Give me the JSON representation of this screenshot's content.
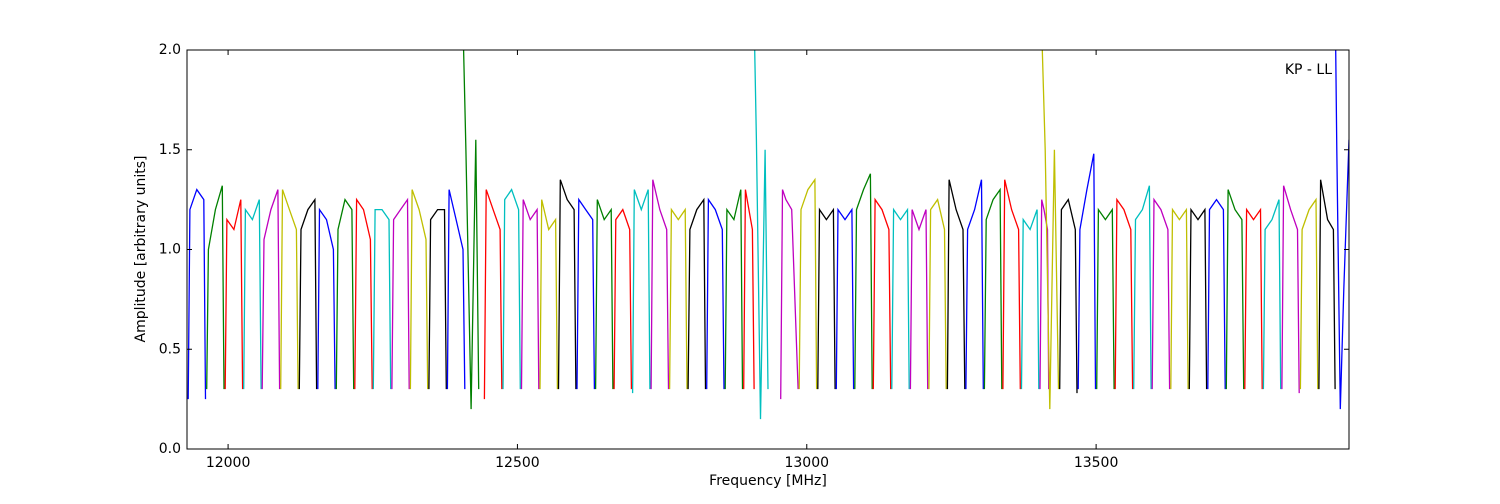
{
  "chart_data": {
    "type": "line",
    "annotation": "KP - LL",
    "xlabel": "Frequency [MHz]",
    "ylabel": "Amplitude [arbitrary units]",
    "xlim": [
      11929,
      13937
    ],
    "ylim": [
      0,
      2.0
    ],
    "xticks": [
      12000,
      12500,
      13000,
      13500
    ],
    "yticks": [
      {
        "value": 0,
        "label": "0.0"
      },
      0.5,
      {
        "value": 1,
        "label": "1.0"
      },
      1.5,
      {
        "value": 2,
        "label": "2.0"
      }
    ],
    "series": [
      {
        "color": "#0000ff",
        "x": [
          11931,
          11934,
          11946,
          11958,
          11961
        ],
        "values": [
          0.25,
          1.2,
          1.3,
          1.25,
          0.25
        ]
      },
      {
        "color": "#008000",
        "x": [
          11963,
          11966,
          11978,
          11990,
          11993
        ],
        "values": [
          0.3,
          1.0,
          1.2,
          1.32,
          0.3
        ]
      },
      {
        "color": "#ff0000",
        "x": [
          11995,
          11998,
          12010,
          12022,
          12025
        ],
        "values": [
          0.3,
          1.15,
          1.1,
          1.25,
          0.3
        ]
      },
      {
        "color": "#00bfbf",
        "x": [
          12027,
          12030,
          12042,
          12054,
          12057
        ],
        "values": [
          0.3,
          1.2,
          1.15,
          1.25,
          0.3
        ]
      },
      {
        "color": "#bf00bf",
        "x": [
          12059,
          12062,
          12074,
          12086,
          12089
        ],
        "values": [
          0.3,
          1.05,
          1.2,
          1.3,
          0.3
        ]
      },
      {
        "color": "#bfbf00",
        "x": [
          12091,
          12094,
          12106,
          12118,
          12121
        ],
        "values": [
          0.3,
          1.3,
          1.2,
          1.1,
          0.3
        ]
      },
      {
        "color": "#000000",
        "x": [
          12123,
          12126,
          12138,
          12150,
          12153
        ],
        "values": [
          0.3,
          1.1,
          1.2,
          1.25,
          0.3
        ]
      },
      {
        "color": "#0000ff",
        "x": [
          12155,
          12158,
          12170,
          12182,
          12185
        ],
        "values": [
          0.3,
          1.2,
          1.15,
          1.0,
          0.3
        ]
      },
      {
        "color": "#008000",
        "x": [
          12187,
          12190,
          12202,
          12214,
          12217
        ],
        "values": [
          0.3,
          1.1,
          1.25,
          1.2,
          0.3
        ]
      },
      {
        "color": "#ff0000",
        "x": [
          12219,
          12222,
          12234,
          12246,
          12249
        ],
        "values": [
          0.3,
          1.25,
          1.2,
          1.05,
          0.3
        ]
      },
      {
        "color": "#00bfbf",
        "x": [
          12251,
          12254,
          12266,
          12278,
          12281
        ],
        "values": [
          0.3,
          1.2,
          1.2,
          1.15,
          0.3
        ]
      },
      {
        "color": "#bf00bf",
        "x": [
          12283,
          12286,
          12298,
          12310,
          12313
        ],
        "values": [
          0.3,
          1.15,
          1.2,
          1.25,
          0.3
        ]
      },
      {
        "color": "#bfbf00",
        "x": [
          12315,
          12318,
          12330,
          12342,
          12345
        ],
        "values": [
          0.3,
          1.3,
          1.2,
          1.05,
          0.3
        ]
      },
      {
        "color": "#000000",
        "x": [
          12347,
          12350,
          12362,
          12374,
          12377
        ],
        "values": [
          0.3,
          1.15,
          1.2,
          1.2,
          0.3
        ]
      },
      {
        "color": "#0000ff",
        "x": [
          12379,
          12382,
          12394,
          12406,
          12409
        ],
        "values": [
          0.3,
          1.3,
          1.15,
          1.0,
          0.3
        ]
      },
      {
        "color": "#008000",
        "x": [
          12407,
          12411,
          12420,
          12428,
          12433
        ],
        "values": [
          2.0,
          1.5,
          0.2,
          1.55,
          0.3
        ]
      },
      {
        "color": "#ff0000",
        "x": [
          12443,
          12446,
          12458,
          12470,
          12473
        ],
        "values": [
          0.25,
          1.3,
          1.2,
          1.1,
          0.3
        ]
      },
      {
        "color": "#00bfbf",
        "x": [
          12475,
          12478,
          12490,
          12502,
          12505
        ],
        "values": [
          0.3,
          1.25,
          1.3,
          1.2,
          0.3
        ]
      },
      {
        "color": "#bf00bf",
        "x": [
          12507,
          12510,
          12522,
          12534,
          12537
        ],
        "values": [
          0.3,
          1.25,
          1.15,
          1.2,
          0.3
        ]
      },
      {
        "color": "#bfbf00",
        "x": [
          12539,
          12542,
          12554,
          12566,
          12569
        ],
        "values": [
          0.3,
          1.25,
          1.1,
          1.15,
          0.3
        ]
      },
      {
        "color": "#000000",
        "x": [
          12571,
          12574,
          12586,
          12598,
          12601
        ],
        "values": [
          0.3,
          1.35,
          1.25,
          1.2,
          0.3
        ]
      },
      {
        "color": "#0000ff",
        "x": [
          12603,
          12606,
          12618,
          12630,
          12633
        ],
        "values": [
          0.3,
          1.25,
          1.2,
          1.15,
          0.3
        ]
      },
      {
        "color": "#008000",
        "x": [
          12635,
          12638,
          12650,
          12662,
          12665
        ],
        "values": [
          0.3,
          1.25,
          1.15,
          1.2,
          0.3
        ]
      },
      {
        "color": "#ff0000",
        "x": [
          12667,
          12670,
          12682,
          12694,
          12697
        ],
        "values": [
          0.3,
          1.15,
          1.2,
          1.1,
          0.3
        ]
      },
      {
        "color": "#00bfbf",
        "x": [
          12699,
          12702,
          12714,
          12726,
          12729
        ],
        "values": [
          0.28,
          1.3,
          1.2,
          1.3,
          0.3
        ]
      },
      {
        "color": "#bf00bf",
        "x": [
          12731,
          12734,
          12746,
          12758,
          12761
        ],
        "values": [
          0.3,
          1.35,
          1.2,
          1.1,
          0.3
        ]
      },
      {
        "color": "#bfbf00",
        "x": [
          12763,
          12766,
          12778,
          12790,
          12793
        ],
        "values": [
          0.3,
          1.2,
          1.15,
          1.2,
          0.3
        ]
      },
      {
        "color": "#000000",
        "x": [
          12795,
          12798,
          12810,
          12822,
          12825
        ],
        "values": [
          0.3,
          1.1,
          1.2,
          1.25,
          0.3
        ]
      },
      {
        "color": "#0000ff",
        "x": [
          12827,
          12830,
          12842,
          12854,
          12857
        ],
        "values": [
          0.3,
          1.25,
          1.2,
          1.1,
          0.3
        ]
      },
      {
        "color": "#008000",
        "x": [
          12859,
          12862,
          12874,
          12886,
          12889
        ],
        "values": [
          0.3,
          1.2,
          1.15,
          1.3,
          0.3
        ]
      },
      {
        "color": "#ff0000",
        "x": [
          12891,
          12894,
          12900,
          12906,
          12909
        ],
        "values": [
          0.3,
          1.3,
          1.2,
          1.1,
          0.3
        ]
      },
      {
        "color": "#00bfbf",
        "x": [
          12910,
          12913,
          12920,
          12928,
          12933
        ],
        "values": [
          2.0,
          1.55,
          0.15,
          1.5,
          0.3
        ]
      },
      {
        "color": "#bf00bf",
        "x": [
          12955,
          12958,
          12964,
          12974,
          12985
        ],
        "values": [
          0.25,
          1.3,
          1.25,
          1.2,
          0.3
        ]
      },
      {
        "color": "#bfbf00",
        "x": [
          12987,
          12990,
          13002,
          13014,
          13017
        ],
        "values": [
          0.3,
          1.2,
          1.3,
          1.35,
          0.3
        ]
      },
      {
        "color": "#000000",
        "x": [
          13019,
          13022,
          13034,
          13046,
          13049
        ],
        "values": [
          0.3,
          1.2,
          1.15,
          1.2,
          0.3
        ]
      },
      {
        "color": "#0000ff",
        "x": [
          13051,
          13054,
          13066,
          13078,
          13081
        ],
        "values": [
          0.3,
          1.2,
          1.15,
          1.2,
          0.3
        ]
      },
      {
        "color": "#008000",
        "x": [
          13083,
          13086,
          13098,
          13110,
          13113
        ],
        "values": [
          0.3,
          1.2,
          1.3,
          1.38,
          0.3
        ]
      },
      {
        "color": "#ff0000",
        "x": [
          13115,
          13118,
          13130,
          13142,
          13145
        ],
        "values": [
          0.3,
          1.25,
          1.2,
          1.1,
          0.3
        ]
      },
      {
        "color": "#00bfbf",
        "x": [
          13147,
          13150,
          13162,
          13174,
          13177
        ],
        "values": [
          0.3,
          1.2,
          1.15,
          1.2,
          0.3
        ]
      },
      {
        "color": "#bf00bf",
        "x": [
          13179,
          13182,
          13194,
          13206,
          13209
        ],
        "values": [
          0.3,
          1.2,
          1.1,
          1.2,
          0.3
        ]
      },
      {
        "color": "#bfbf00",
        "x": [
          13211,
          13214,
          13226,
          13238,
          13241
        ],
        "values": [
          0.3,
          1.2,
          1.25,
          1.1,
          0.3
        ]
      },
      {
        "color": "#000000",
        "x": [
          13243,
          13246,
          13258,
          13270,
          13273
        ],
        "values": [
          0.3,
          1.35,
          1.2,
          1.1,
          0.3
        ]
      },
      {
        "color": "#0000ff",
        "x": [
          13275,
          13278,
          13290,
          13302,
          13305
        ],
        "values": [
          0.3,
          1.1,
          1.2,
          1.35,
          0.3
        ]
      },
      {
        "color": "#008000",
        "x": [
          13307,
          13310,
          13322,
          13334,
          13337
        ],
        "values": [
          0.3,
          1.15,
          1.25,
          1.3,
          0.3
        ]
      },
      {
        "color": "#ff0000",
        "x": [
          13339,
          13342,
          13354,
          13366,
          13369
        ],
        "values": [
          0.3,
          1.35,
          1.2,
          1.1,
          0.3
        ]
      },
      {
        "color": "#00bfbf",
        "x": [
          13371,
          13374,
          13386,
          13398,
          13401
        ],
        "values": [
          0.3,
          1.15,
          1.1,
          1.2,
          0.3
        ]
      },
      {
        "color": "#bf00bf",
        "x": [
          13403,
          13406,
          13410,
          13416,
          13418
        ],
        "values": [
          0.3,
          1.25,
          1.2,
          1.1,
          0.3
        ]
      },
      {
        "color": "#bfbf00",
        "x": [
          13407,
          13412,
          13420,
          13428,
          13435
        ],
        "values": [
          2.0,
          1.5,
          0.2,
          1.5,
          0.3
        ]
      },
      {
        "color": "#000000",
        "x": [
          13437,
          13440,
          13452,
          13464,
          13467
        ],
        "values": [
          0.3,
          1.2,
          1.25,
          1.1,
          0.28
        ]
      },
      {
        "color": "#0000ff",
        "x": [
          13469,
          13472,
          13484,
          13496,
          13499
        ],
        "values": [
          0.3,
          1.1,
          1.3,
          1.48,
          0.3
        ]
      },
      {
        "color": "#008000",
        "x": [
          13501,
          13504,
          13516,
          13528,
          13531
        ],
        "values": [
          0.3,
          1.2,
          1.15,
          1.2,
          0.3
        ]
      },
      {
        "color": "#ff0000",
        "x": [
          13533,
          13536,
          13548,
          13560,
          13563
        ],
        "values": [
          0.3,
          1.25,
          1.2,
          1.1,
          0.3
        ]
      },
      {
        "color": "#00bfbf",
        "x": [
          13565,
          13568,
          13580,
          13592,
          13595
        ],
        "values": [
          0.3,
          1.15,
          1.2,
          1.32,
          0.3
        ]
      },
      {
        "color": "#bf00bf",
        "x": [
          13597,
          13600,
          13612,
          13624,
          13627
        ],
        "values": [
          0.3,
          1.25,
          1.2,
          1.1,
          0.3
        ]
      },
      {
        "color": "#bfbf00",
        "x": [
          13629,
          13632,
          13644,
          13656,
          13659
        ],
        "values": [
          0.3,
          1.2,
          1.15,
          1.2,
          0.3
        ]
      },
      {
        "color": "#000000",
        "x": [
          13661,
          13664,
          13676,
          13688,
          13691
        ],
        "values": [
          0.3,
          1.2,
          1.15,
          1.2,
          0.3
        ]
      },
      {
        "color": "#0000ff",
        "x": [
          13693,
          13696,
          13708,
          13720,
          13723
        ],
        "values": [
          0.3,
          1.2,
          1.25,
          1.2,
          0.3
        ]
      },
      {
        "color": "#008000",
        "x": [
          13725,
          13728,
          13740,
          13752,
          13755
        ],
        "values": [
          0.3,
          1.3,
          1.2,
          1.15,
          0.3
        ]
      },
      {
        "color": "#ff0000",
        "x": [
          13757,
          13760,
          13772,
          13784,
          13787
        ],
        "values": [
          0.3,
          1.2,
          1.15,
          1.2,
          0.3
        ]
      },
      {
        "color": "#00bfbf",
        "x": [
          13789,
          13792,
          13804,
          13816,
          13819
        ],
        "values": [
          0.3,
          1.1,
          1.15,
          1.25,
          0.3
        ]
      },
      {
        "color": "#bf00bf",
        "x": [
          13821,
          13824,
          13836,
          13848,
          13851
        ],
        "values": [
          0.3,
          1.32,
          1.2,
          1.1,
          0.28
        ]
      },
      {
        "color": "#bfbf00",
        "x": [
          13853,
          13856,
          13868,
          13880,
          13883
        ],
        "values": [
          0.3,
          1.1,
          1.2,
          1.25,
          0.3
        ]
      },
      {
        "color": "#000000",
        "x": [
          13885,
          13888,
          13900,
          13910,
          13913
        ],
        "values": [
          0.3,
          1.35,
          1.15,
          1.1,
          0.3
        ]
      },
      {
        "color": "#0000ff",
        "x": [
          13914,
          13916,
          13922,
          13928,
          13937
        ],
        "values": [
          2.0,
          1.5,
          0.2,
          0.8,
          1.55
        ]
      }
    ]
  }
}
